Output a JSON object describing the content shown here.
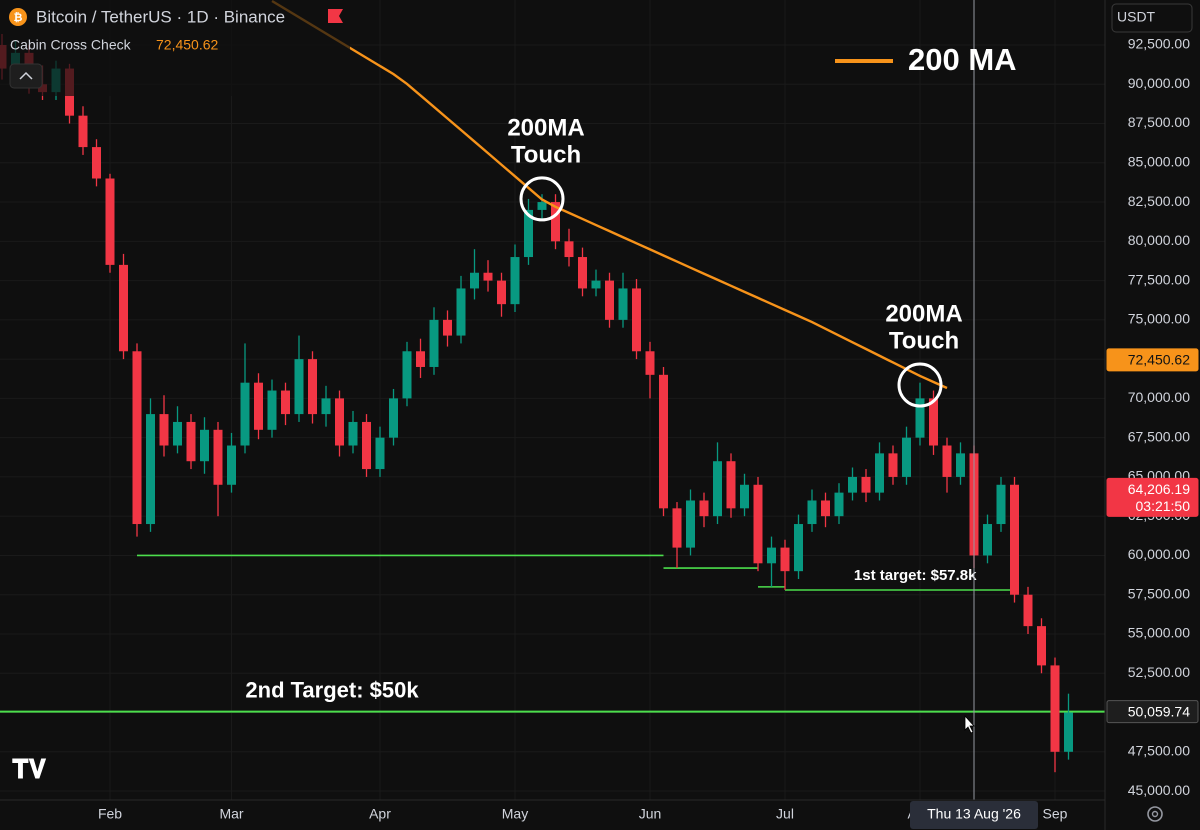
{
  "chart_data": {
    "type": "candlestick",
    "title": "Bitcoin / TetherUS · 1D · Binance",
    "indicator": {
      "name": "Cabin Cross Check",
      "value": 72450.62,
      "value_label": "72,450.62"
    },
    "currency": "USDT",
    "categories": [
      null,
      null,
      null,
      null,
      null,
      null,
      null,
      null,
      "Feb",
      null,
      null,
      null,
      null,
      null,
      null,
      null,
      null,
      "Mar",
      null,
      null,
      null,
      null,
      null,
      null,
      null,
      null,
      null,
      null,
      "Apr",
      null,
      null,
      null,
      null,
      null,
      null,
      null,
      null,
      null,
      "May",
      null,
      null,
      null,
      null,
      null,
      null,
      null,
      null,
      null,
      "Jun",
      null,
      null,
      null,
      null,
      null,
      null,
      null,
      null,
      null,
      "Jul",
      null,
      null,
      null,
      null,
      null,
      null,
      null,
      null,
      null,
      "Aug",
      null,
      null,
      null,
      null,
      null,
      null,
      null,
      null,
      null,
      "Sep",
      null
    ],
    "candles": {
      "up_color": "#089981",
      "down_color": "#f23645",
      "open": [
        92500,
        91000,
        92000,
        90000,
        89500,
        91000,
        88000,
        86000,
        84000,
        78500,
        73000,
        62000,
        69000,
        67000,
        68500,
        66000,
        68000,
        64500,
        67000,
        71000,
        68000,
        70500,
        69000,
        72500,
        69000,
        70000,
        67000,
        68500,
        65500,
        67500,
        70000,
        73000,
        72000,
        75000,
        74000,
        77000,
        78000,
        77500,
        76000,
        79000,
        82000,
        82500,
        80000,
        79000,
        77000,
        77500,
        75000,
        77000,
        73000,
        71500,
        63000,
        60500,
        63500,
        62500,
        66000,
        63000,
        64500,
        59500,
        60500,
        59000,
        62000,
        63500,
        62500,
        64000,
        65000,
        64000,
        66500,
        65000,
        67500,
        70000,
        67000,
        65000,
        66500,
        60000,
        62000,
        64500,
        57500,
        55500,
        53000,
        47500
      ],
      "high": [
        93200,
        92800,
        92500,
        91200,
        91500,
        91300,
        88600,
        86500,
        84300,
        79200,
        73500,
        70000,
        70200,
        69500,
        69000,
        68800,
        68500,
        67800,
        73500,
        71600,
        71200,
        71000,
        74000,
        73000,
        70800,
        70500,
        69200,
        69000,
        68200,
        70600,
        73600,
        73800,
        75800,
        75600,
        77800,
        79500,
        78800,
        78000,
        79800,
        82700,
        83000,
        83000,
        80800,
        79600,
        78200,
        78000,
        78000,
        77600,
        73600,
        72000,
        63400,
        64200,
        64000,
        67200,
        66500,
        65200,
        65000,
        61200,
        61000,
        62600,
        64200,
        64000,
        64600,
        65600,
        65500,
        67200,
        67000,
        68200,
        71000,
        70500,
        67500,
        67200,
        67000,
        62600,
        65000,
        65000,
        58000,
        56000,
        53500,
        51200
      ],
      "low": [
        90300,
        90500,
        89400,
        89000,
        89000,
        87500,
        85500,
        83500,
        78000,
        72500,
        61200,
        61500,
        66300,
        66500,
        65500,
        65200,
        62500,
        64000,
        66500,
        67400,
        67500,
        68300,
        68500,
        68400,
        68200,
        66300,
        66500,
        65000,
        65000,
        67000,
        69500,
        71300,
        71500,
        73300,
        73500,
        76300,
        76800,
        75200,
        75500,
        78500,
        81300,
        79500,
        78400,
        76500,
        76500,
        74500,
        74500,
        72500,
        70000,
        62500,
        59200,
        60000,
        61800,
        62000,
        62400,
        62500,
        59000,
        58000,
        57800,
        58500,
        61500,
        61800,
        62000,
        63500,
        63400,
        63500,
        64500,
        64500,
        67000,
        66400,
        64000,
        64500,
        59200,
        59500,
        61500,
        57000,
        55000,
        52500,
        46200,
        47000
      ],
      "close": [
        91000,
        92000,
        90000,
        89500,
        91000,
        88000,
        86000,
        84000,
        78500,
        73000,
        62000,
        69000,
        67000,
        68500,
        66000,
        68000,
        64500,
        67000,
        71000,
        68000,
        70500,
        69000,
        72500,
        69000,
        70000,
        67000,
        68500,
        65500,
        67500,
        70000,
        73000,
        72000,
        75000,
        74000,
        77000,
        78000,
        77500,
        76000,
        79000,
        82000,
        82500,
        80000,
        79000,
        77000,
        77500,
        75000,
        77000,
        73000,
        71500,
        63000,
        60500,
        63500,
        62500,
        66000,
        63000,
        64500,
        59500,
        60500,
        59000,
        62000,
        63500,
        62500,
        64000,
        65000,
        64000,
        66500,
        65000,
        67500,
        70000,
        67000,
        65000,
        66500,
        60000,
        62000,
        64500,
        57500,
        55500,
        53000,
        47500,
        50000
      ]
    },
    "series": [
      {
        "name": "200 MA",
        "color": "#f7931a",
        "values": [
          null,
          null,
          null,
          null,
          null,
          null,
          null,
          null,
          null,
          null,
          null,
          null,
          null,
          null,
          null,
          null,
          null,
          null,
          null,
          null,
          95300,
          94783,
          94266,
          93749,
          93232,
          92715,
          92198,
          91681,
          91164,
          90647,
          90020,
          89287,
          88554,
          87821,
          87088,
          86354,
          85616,
          84877,
          84139,
          83400,
          82664,
          82199,
          81811,
          81424,
          81036,
          80649,
          80261,
          79874,
          79486,
          79098,
          78711,
          78323,
          77936,
          77552,
          77167,
          76783,
          76398,
          76014,
          75629,
          75245,
          74860,
          74431,
          74002,
          73573,
          73144,
          72715,
          72286,
          71857,
          71430,
          71045,
          70660,
          null,
          null,
          null,
          null,
          null,
          null,
          null,
          null,
          null
        ]
      }
    ],
    "ylim": [
      44430,
      95365
    ],
    "yticks": [
      {
        "value": 45000,
        "label": "45,000.00"
      },
      {
        "value": 47500,
        "label": "47,500.00"
      },
      {
        "value": 50000,
        "label": "50,000.00"
      },
      {
        "value": 52500,
        "label": "52,500.00"
      },
      {
        "value": 55000,
        "label": "55,000.00"
      },
      {
        "value": 57500,
        "label": "57,500.00"
      },
      {
        "value": 60000,
        "label": "60,000.00"
      },
      {
        "value": 62500,
        "label": "62,500.00"
      },
      {
        "value": 65000,
        "label": "65,000.00"
      },
      {
        "value": 67500,
        "label": "67,500.00"
      },
      {
        "value": 70000,
        "label": "70,000.00"
      },
      {
        "value": 72500,
        "label": "72,500.00"
      },
      {
        "value": 75000,
        "label": "75,000.00"
      },
      {
        "value": 77500,
        "label": "77,500.00"
      },
      {
        "value": 80000,
        "label": "80,000.00"
      },
      {
        "value": 82500,
        "label": "82,500.00"
      },
      {
        "value": 85000,
        "label": "85,000.00"
      },
      {
        "value": 87500,
        "label": "87,500.00"
      },
      {
        "value": 90000,
        "label": "90,000.00"
      },
      {
        "value": 92500,
        "label": "92,500.00"
      }
    ],
    "grid": true,
    "levels": [
      {
        "value": 60000,
        "start": 10,
        "end": 49,
        "color": "#4cde4c"
      },
      {
        "value": 59200,
        "start": 49,
        "end": 56,
        "color": "#4cde4c"
      },
      {
        "value": 58000,
        "start": 56,
        "end": 58,
        "color": "#4cde4c"
      },
      {
        "value": 57800,
        "start": 58,
        "end": 75,
        "color": "#4cde4c",
        "label": "1st target: $57.8k"
      },
      {
        "value": 50059.74,
        "start": 0,
        "end": 79,
        "extend": true,
        "color": "#4cde4c",
        "label": "2nd Target: $50k"
      }
    ],
    "touches": [
      {
        "lines": [
          "200MA",
          "Touch"
        ],
        "index": 40,
        "value": 82700
      },
      {
        "lines": [
          "200MA",
          "Touch"
        ],
        "index": 68,
        "value": 70850
      }
    ],
    "price_tags": [
      {
        "value": 72450.62,
        "label": "72,450.62",
        "color": "#f7931a",
        "text_color": "#131313"
      },
      {
        "value": 64206.19,
        "label": "64,206.19",
        "sub": "03:21:50",
        "color": "#f23645",
        "text_color": "#ffffff"
      },
      {
        "value": 50059.74,
        "label": "50,059.74",
        "color": "#1e1e1e",
        "text_color": "#ffffff"
      }
    ],
    "crosshair": {
      "index": 72,
      "label": "Thu 13 Aug '26"
    },
    "legend": "top-right"
  }
}
